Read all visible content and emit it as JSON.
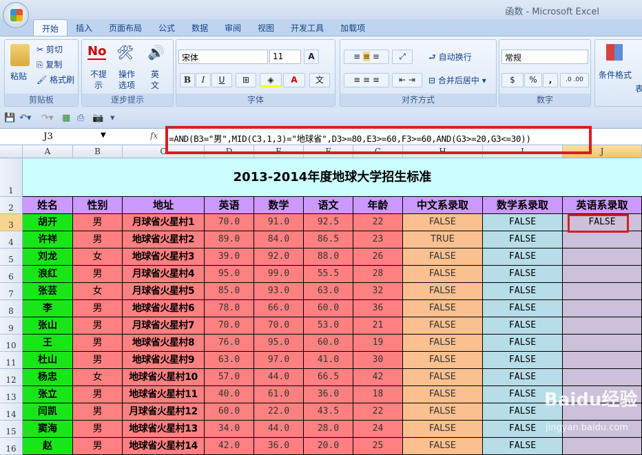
{
  "app": {
    "title": "函数 - Microsoft Excel"
  },
  "tabs": [
    "开始",
    "插入",
    "页面布局",
    "公式",
    "数据",
    "审阅",
    "视图",
    "开发工具",
    "加载项"
  ],
  "ribbon": {
    "clipboard": {
      "label": "剪贴板",
      "paste": "粘贴",
      "cut": "剪切",
      "copy": "复制",
      "format_painter": "格式刷"
    },
    "steps": {
      "label": "逐步提示",
      "no_tip": "不提示",
      "options": "操作选项",
      "english": "英文",
      "no_icon_text": "No"
    },
    "font": {
      "label": "字体",
      "name": "宋体",
      "size": "11",
      "bold": "B",
      "italic": "I",
      "underline": "U",
      "font_color": "A"
    },
    "align": {
      "label": "对齐方式",
      "wrap": "自动换行",
      "merge": "合并后居中"
    },
    "number": {
      "label": "数字",
      "format": "常规",
      "percent": "%",
      "comma": ","
    },
    "styles": {
      "cond_format": "条件格式",
      "table": "表"
    }
  },
  "formula_bar": {
    "name_box": "J3",
    "fx": "fx",
    "formula": "=AND(B3=\"男\",MID(C3,1,3)=\"地球省\",D3>=80,E3>=60,F3>=60,AND(G3>=20,G3<=30))"
  },
  "columns": [
    "A",
    "B",
    "C",
    "D",
    "E",
    "F",
    "G",
    "H",
    "I",
    "J"
  ],
  "selected_cell": "J3",
  "sheet": {
    "title": "2013-2014年度地球大学招生标准",
    "headers": [
      "姓名",
      "性别",
      "地址",
      "英语",
      "数学",
      "语文",
      "年龄",
      "中文系录取",
      "数学系录取",
      "英语系录取"
    ],
    "rows": [
      [
        "胡开",
        "男",
        "月球省火星村1",
        "70.0",
        "91.0",
        "92.5",
        "22",
        "FALSE",
        "FALSE",
        "FALSE"
      ],
      [
        "许祥",
        "男",
        "地球省火星村2",
        "89.0",
        "84.0",
        "86.5",
        "23",
        "TRUE",
        "FALSE",
        ""
      ],
      [
        "刘龙",
        "女",
        "地球省火星村3",
        "39.0",
        "92.0",
        "88.0",
        "26",
        "FALSE",
        "FALSE",
        ""
      ],
      [
        "浪红",
        "男",
        "月球省火星村4",
        "95.0",
        "99.0",
        "55.5",
        "28",
        "FALSE",
        "FALSE",
        ""
      ],
      [
        "张芸",
        "女",
        "月球省火星村5",
        "85.0",
        "93.0",
        "63.0",
        "32",
        "FALSE",
        "FALSE",
        ""
      ],
      [
        "李",
        "男",
        "地球省火星村6",
        "78.0",
        "66.0",
        "60.0",
        "36",
        "FALSE",
        "FALSE",
        ""
      ],
      [
        "张山",
        "男",
        "月球省火星村7",
        "70.0",
        "70.0",
        "53.0",
        "21",
        "FALSE",
        "FALSE",
        ""
      ],
      [
        "王",
        "男",
        "地球省火星村8",
        "76.0",
        "95.0",
        "60.0",
        "19",
        "FALSE",
        "FALSE",
        ""
      ],
      [
        "杜山",
        "男",
        "地球省火星村9",
        "63.0",
        "97.0",
        "41.0",
        "30",
        "FALSE",
        "FALSE",
        ""
      ],
      [
        "杨忠",
        "女",
        "地球省火星村10",
        "57.0",
        "44.0",
        "66.5",
        "42",
        "FALSE",
        "FALSE",
        ""
      ],
      [
        "张立",
        "男",
        "地球省火星村11",
        "40.0",
        "61.0",
        "36.0",
        "18",
        "FALSE",
        "FALSE",
        ""
      ],
      [
        "闫凯",
        "男",
        "月球省火星村12",
        "60.0",
        "22.0",
        "43.5",
        "22",
        "FALSE",
        "FALSE",
        ""
      ],
      [
        "窦海",
        "男",
        "地球省火星村13",
        "34.0",
        "44.0",
        "28.0",
        "24",
        "FALSE",
        "FALSE",
        ""
      ],
      [
        "赵",
        "男",
        "地球省火星村14",
        "42.0",
        "36.0",
        "20.0",
        "25",
        "FALSE",
        "FALSE",
        ""
      ]
    ]
  },
  "watermark": {
    "brand": "Baidu经验",
    "url": "jingyan.baidu.com"
  },
  "colors": {
    "header": "#cc99ff",
    "name": "#19e619",
    "data": "#ff8080",
    "chinese_admit": "#fac08f",
    "math_admit": "#b7dee8",
    "english_admit": "#ccc0da",
    "highlight": "#d81e1e"
  }
}
